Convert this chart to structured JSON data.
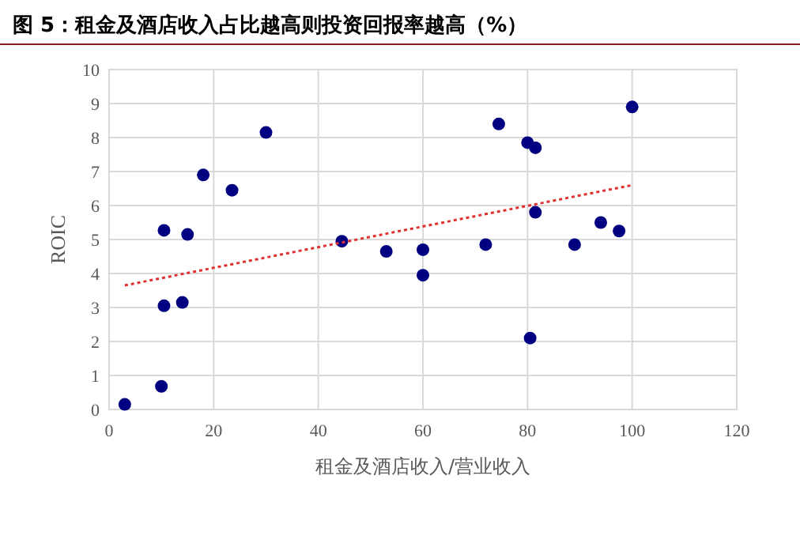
{
  "chart_data": {
    "type": "scatter",
    "title": "图 5：租金及酒店收入占比越高则投资回报率越高（%）",
    "xlabel": "租金及酒店收入/营业收入",
    "ylabel": "ROIC",
    "xlim": [
      0,
      120
    ],
    "xticks": [
      0,
      20,
      40,
      60,
      80,
      100,
      120
    ],
    "ylim": [
      0,
      10
    ],
    "yticks": [
      0,
      1,
      2,
      3,
      4,
      5,
      6,
      7,
      8,
      9,
      10
    ],
    "grid": true,
    "marker": "circle",
    "series": [
      {
        "color": "#000080",
        "x": [
          3,
          10,
          10.5,
          10.5,
          14,
          15,
          18,
          23.5,
          30,
          44.5,
          53,
          60,
          60,
          72,
          74.5,
          80,
          81.5,
          80.5,
          81.5,
          89,
          94,
          97.5,
          100
        ],
        "values": [
          0.15,
          0.68,
          3.05,
          5.27,
          3.15,
          5.15,
          6.9,
          6.45,
          8.15,
          4.95,
          4.65,
          4.7,
          3.95,
          4.85,
          8.4,
          7.85,
          7.7,
          2.1,
          5.8,
          4.85,
          5.5,
          5.25,
          8.9
        ]
      },
      {
        "type": "line",
        "color": "#e03030",
        "line_style": "dotted",
        "marker": "none",
        "x": [
          3,
          100
        ],
        "values": [
          3.65,
          6.6
        ]
      }
    ]
  }
}
